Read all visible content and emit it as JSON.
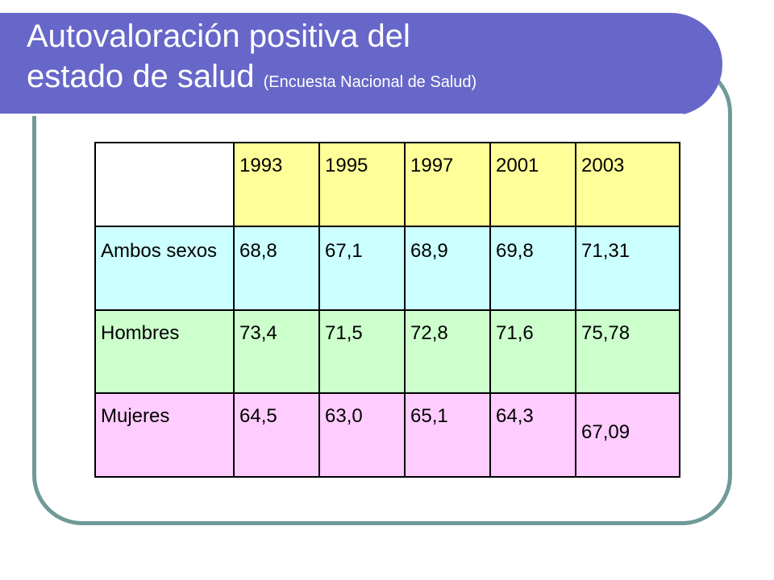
{
  "slide": {
    "title_line1": "Autovaloración positiva del",
    "title_line2": "estado de salud",
    "title_source": "(Encuesta Nacional de Salud)"
  },
  "table": {
    "corner": "",
    "years": [
      "1993",
      "1995",
      "1997",
      "2001",
      "2003"
    ],
    "rows": [
      {
        "label": "Ambos sexos",
        "values": [
          "68,8",
          "67,1",
          "68,9",
          "69,8",
          "71,31"
        ],
        "color": "#ccffff"
      },
      {
        "label": "Hombres",
        "values": [
          "73,4",
          "71,5",
          "72,8",
          "71,6",
          "75,78"
        ],
        "color": "#ccffcc"
      },
      {
        "label": "Mujeres",
        "values": [
          "64,5",
          "63,0",
          "65,1",
          "64,3",
          "67,09"
        ],
        "color": "#ffccff"
      }
    ],
    "header_color": "#ffff99"
  },
  "theme": {
    "title_bar_color": "#6767c9",
    "frame_color": "#6f9a98"
  }
}
